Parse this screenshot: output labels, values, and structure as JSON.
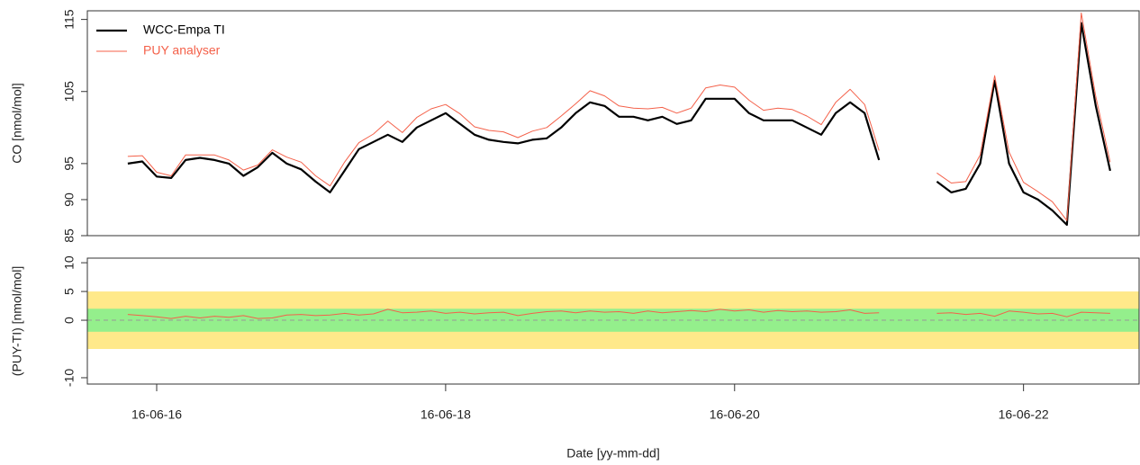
{
  "chart_data": [
    {
      "type": "line",
      "ylabel": "CO [nmol/mol]",
      "x": [
        -0.2,
        -0.1,
        0,
        0.1,
        0.2,
        0.3,
        0.4,
        0.5,
        0.6,
        0.7,
        0.8,
        0.9,
        1,
        1.1,
        1.2,
        1.3,
        1.4,
        1.5,
        1.6,
        1.7,
        1.8,
        1.9,
        2,
        2.1,
        2.2,
        2.3,
        2.4,
        2.5,
        2.6,
        2.7,
        2.8,
        2.9,
        3,
        3.1,
        3.2,
        3.3,
        3.4,
        3.5,
        3.6,
        3.7,
        3.8,
        3.9,
        4,
        4.1,
        4.2,
        4.3,
        4.4,
        4.5,
        4.6,
        4.7,
        4.8,
        4.9,
        5,
        5.1,
        5.2,
        5.3,
        5.4,
        5.5,
        5.6,
        5.7,
        5.8,
        5.9,
        6,
        6.1,
        6.2,
        6.3,
        6.4,
        6.5,
        6.6
      ],
      "series": [
        {
          "name": "WCC-Empa TI",
          "color": "#000000",
          "width": 2.2,
          "values": [
            95,
            95.3,
            93.2,
            93,
            95.5,
            95.8,
            95.5,
            95,
            93.3,
            94.5,
            96.5,
            95,
            94.2,
            92.5,
            91,
            94,
            97,
            98,
            99,
            98,
            100,
            101,
            102,
            100.5,
            99,
            98.3,
            98,
            97.8,
            98.3,
            98.5,
            100,
            102,
            103.5,
            103,
            101.5,
            101.5,
            101,
            101.5,
            100.5,
            101,
            104,
            104,
            104,
            102,
            101,
            101,
            101,
            100,
            99,
            102,
            103.5,
            102,
            95.5,
            null,
            null,
            null,
            92.5,
            91,
            91.5,
            95,
            106.5,
            95,
            91,
            90,
            88.5,
            86.5,
            114.5,
            103,
            94
          ]
        },
        {
          "name": "PUY analyser",
          "color": "#f4614a",
          "width": 1,
          "values": [
            96,
            96.1,
            93.8,
            93.3,
            96.2,
            96.2,
            96.2,
            95.5,
            94.1,
            94.8,
            96.9,
            95.9,
            95.2,
            93.3,
            91.9,
            95.2,
            97.9,
            99.1,
            100.9,
            99.3,
            101.4,
            102.6,
            103.2,
            101.9,
            100.1,
            99.6,
            99.4,
            98.6,
            99.5,
            100,
            101.6,
            103.3,
            105.1,
            104.4,
            103,
            102.7,
            102.6,
            102.8,
            102,
            102.7,
            105.5,
            105.9,
            105.6,
            103.8,
            102.4,
            102.7,
            102.5,
            101.6,
            100.4,
            103.5,
            105.3,
            103.2,
            96.8,
            null,
            null,
            null,
            93.7,
            92.3,
            92.5,
            96.2,
            107.2,
            96.6,
            92.4,
            91.1,
            89.7,
            87.1,
            115.9,
            104.3,
            95.2
          ]
        }
      ],
      "xlim": [
        -0.48,
        6.8
      ],
      "ylim": [
        85,
        116.2
      ],
      "yticks": [
        85,
        90,
        95,
        105,
        115
      ],
      "legend": "top-left"
    },
    {
      "type": "line",
      "ylabel": "(PUY-TI) [nmol/mol]",
      "xlabel": "Date [yy-mm-dd]",
      "x": [
        -0.2,
        -0.1,
        0,
        0.1,
        0.2,
        0.3,
        0.4,
        0.5,
        0.6,
        0.7,
        0.8,
        0.9,
        1,
        1.1,
        1.2,
        1.3,
        1.4,
        1.5,
        1.6,
        1.7,
        1.8,
        1.9,
        2,
        2.1,
        2.2,
        2.3,
        2.4,
        2.5,
        2.6,
        2.7,
        2.8,
        2.9,
        3,
        3.1,
        3.2,
        3.3,
        3.4,
        3.5,
        3.6,
        3.7,
        3.8,
        3.9,
        4,
        4.1,
        4.2,
        4.3,
        4.4,
        4.5,
        4.6,
        4.7,
        4.8,
        4.9,
        5,
        5.1,
        5.2,
        5.3,
        5.4,
        5.5,
        5.6,
        5.7,
        5.8,
        5.9,
        6,
        6.1,
        6.2,
        6.3,
        6.4,
        6.5,
        6.6
      ],
      "series": [
        {
          "color": "#f4614a",
          "width": 1,
          "values": [
            1,
            0.8,
            0.6,
            0.3,
            0.7,
            0.4,
            0.7,
            0.5,
            0.8,
            0.3,
            0.4,
            0.9,
            1,
            0.8,
            0.9,
            1.2,
            0.9,
            1.1,
            1.9,
            1.3,
            1.4,
            1.6,
            1.2,
            1.4,
            1.1,
            1.3,
            1.4,
            0.8,
            1.2,
            1.5,
            1.6,
            1.3,
            1.6,
            1.4,
            1.5,
            1.2,
            1.6,
            1.3,
            1.5,
            1.7,
            1.5,
            1.9,
            1.6,
            1.8,
            1.4,
            1.7,
            1.5,
            1.6,
            1.4,
            1.5,
            1.8,
            1.2,
            1.3,
            null,
            null,
            null,
            1.2,
            1.3,
            1,
            1.2,
            0.7,
            1.6,
            1.4,
            1.1,
            1.2,
            0.6,
            1.4,
            1.3,
            1.2
          ]
        }
      ],
      "bands": [
        {
          "from": -5,
          "to": 5,
          "color": "#ffe98a"
        },
        {
          "from": -2,
          "to": 2,
          "color": "#94ef8c"
        }
      ],
      "reference": {
        "value": 0,
        "color": "#999999"
      },
      "xlim": [
        -0.48,
        6.8
      ],
      "ylim": [
        -11.1,
        10.8
      ],
      "yticks": [
        -10,
        0,
        5,
        10
      ],
      "xticks": [
        {
          "value": 0,
          "label": "16-06-16"
        },
        {
          "value": 2,
          "label": "16-06-18"
        },
        {
          "value": 4,
          "label": "16-06-20"
        },
        {
          "value": 6,
          "label": "16-06-22"
        }
      ]
    }
  ]
}
